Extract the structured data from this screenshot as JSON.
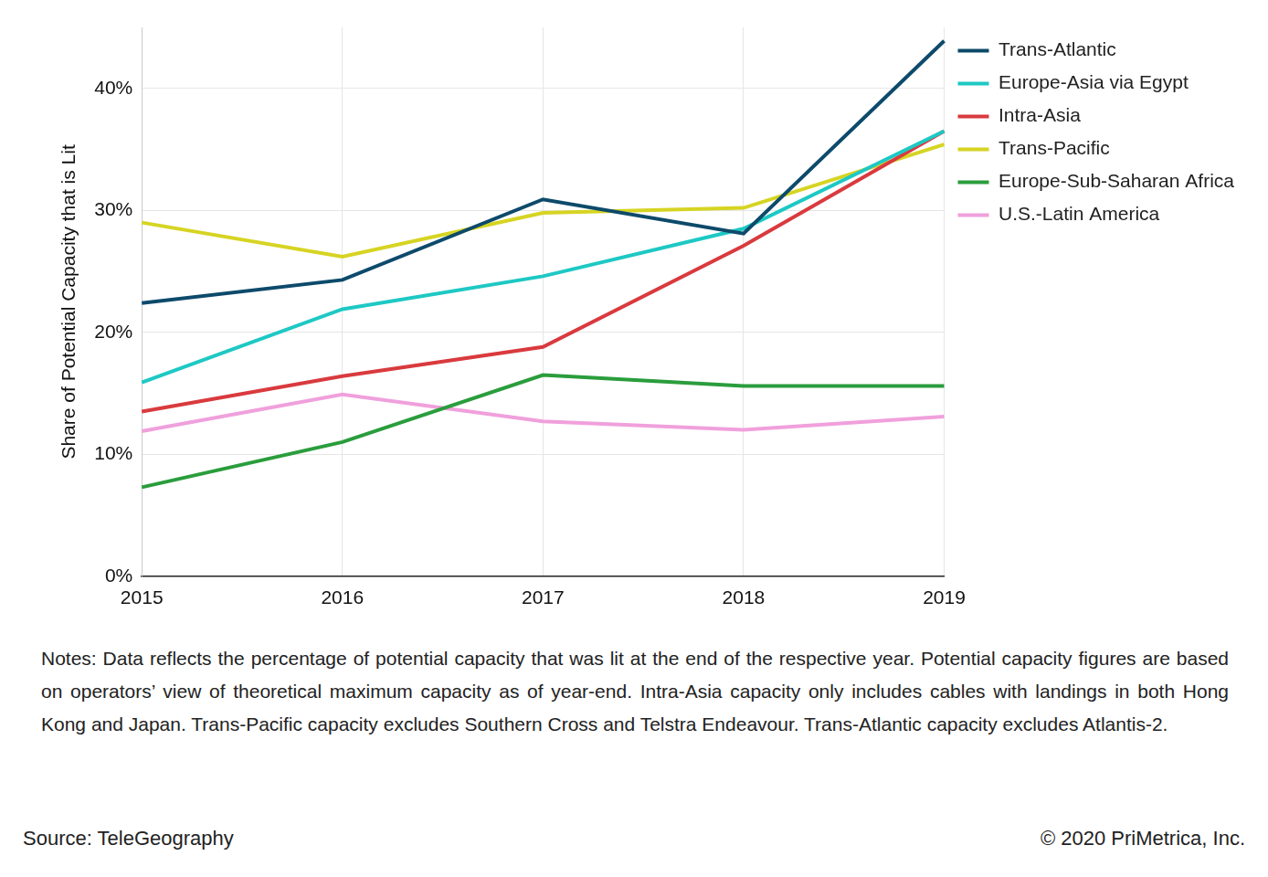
{
  "chart_data": {
    "type": "line",
    "y_label": "Share of Potential Capacity that is Lit",
    "categories": [
      "2015",
      "2016",
      "2017",
      "2018",
      "2019"
    ],
    "series": [
      {
        "name": "Trans-Atlantic",
        "color": "#0d4a6b",
        "values": [
          22.4,
          24.3,
          30.9,
          28.1,
          43.9
        ]
      },
      {
        "name": "Europe-Asia via Egypt",
        "color": "#1ec8c4",
        "values": [
          15.9,
          21.9,
          24.6,
          28.5,
          36.5
        ]
      },
      {
        "name": "Intra-Asia",
        "color": "#d93a3e",
        "values": [
          13.5,
          16.4,
          18.8,
          27.1,
          36.5
        ]
      },
      {
        "name": "Trans-Pacific",
        "color": "#d6d422",
        "values": [
          29.0,
          26.2,
          29.8,
          30.2,
          35.4
        ]
      },
      {
        "name": "Europe-Sub-Saharan Africa",
        "color": "#2a9d3c",
        "values": [
          7.3,
          11.0,
          16.5,
          15.6,
          15.6
        ]
      },
      {
        "name": "U.S.-Latin America",
        "color": "#f0a0dc",
        "values": [
          11.9,
          14.9,
          12.7,
          12.0,
          13.1
        ]
      }
    ],
    "ylim": [
      0,
      45
    ],
    "yticks": [
      {
        "value": 0,
        "label": "0%"
      },
      {
        "value": 10,
        "label": "10%"
      },
      {
        "value": 20,
        "label": "20%"
      },
      {
        "value": 30,
        "label": "30%"
      },
      {
        "value": 40,
        "label": "40%"
      }
    ],
    "grid": true,
    "legend": "right",
    "notes": "Notes: Data reflects the percentage of potential capacity that was lit at the end of the respective year. Potential capacity figures are based on operators’ view of theoretical maximum capacity as of year-end. Intra-Asia capacity only includes cables with landings in both Hong Kong and Japan. Trans-Pacific capacity excludes Southern Cross and Telstra Endeavour. Trans-Atlantic capacity excludes Atlantis-2.",
    "source": "Source: TeleGeography",
    "credit": "© 2020 PriMetrica, Inc."
  }
}
